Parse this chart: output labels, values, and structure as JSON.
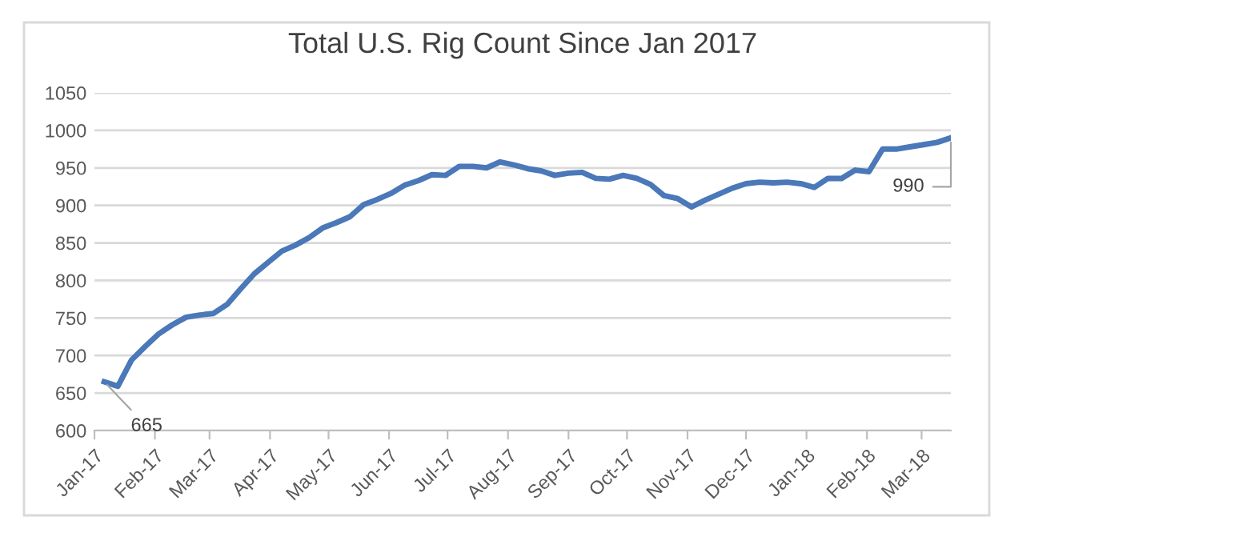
{
  "chart_data": {
    "type": "line",
    "title": "Total U.S. Rig Count Since Jan 2017",
    "x": [
      "2017-01-06",
      "2017-01-13",
      "2017-01-20",
      "2017-01-27",
      "2017-02-03",
      "2017-02-10",
      "2017-02-17",
      "2017-02-24",
      "2017-03-03",
      "2017-03-10",
      "2017-03-17",
      "2017-03-24",
      "2017-03-31",
      "2017-04-07",
      "2017-04-14",
      "2017-04-21",
      "2017-04-28",
      "2017-05-05",
      "2017-05-12",
      "2017-05-19",
      "2017-05-26",
      "2017-06-02",
      "2017-06-09",
      "2017-06-16",
      "2017-06-23",
      "2017-06-30",
      "2017-07-07",
      "2017-07-14",
      "2017-07-21",
      "2017-07-28",
      "2017-08-04",
      "2017-08-11",
      "2017-08-18",
      "2017-08-25",
      "2017-09-01",
      "2017-09-08",
      "2017-09-15",
      "2017-09-22",
      "2017-09-29",
      "2017-10-06",
      "2017-10-13",
      "2017-10-20",
      "2017-10-27",
      "2017-11-03",
      "2017-11-10",
      "2017-11-17",
      "2017-11-24",
      "2017-12-01",
      "2017-12-08",
      "2017-12-15",
      "2017-12-22",
      "2017-12-29",
      "2018-01-05",
      "2018-01-12",
      "2018-01-19",
      "2018-01-26",
      "2018-02-02",
      "2018-02-09",
      "2018-02-16",
      "2018-02-23",
      "2018-03-02",
      "2018-03-09",
      "2018-03-16"
    ],
    "series": [
      {
        "color": "#4a78b8",
        "values": [
          665,
          659,
          694,
          712,
          729,
          741,
          751,
          754,
          756,
          768,
          789,
          809,
          824,
          839,
          847,
          857,
          870,
          877,
          885,
          901,
          908,
          916,
          927,
          933,
          941,
          940,
          952,
          952,
          950,
          958,
          954,
          949,
          946,
          940,
          943,
          944,
          936,
          935,
          940,
          936,
          928,
          913,
          909,
          898,
          907,
          915,
          923,
          929,
          931,
          930,
          931,
          929,
          924,
          936,
          936,
          947,
          945,
          975,
          975,
          978,
          981,
          984,
          990
        ]
      }
    ],
    "xlim": [
      "2017-01-01",
      "2018-03-16"
    ],
    "xticks": [
      {
        "value": "2017-01-01",
        "label": "Jan-17"
      },
      {
        "value": "2017-02-01",
        "label": "Feb-17"
      },
      {
        "value": "2017-03-01",
        "label": "Mar-17"
      },
      {
        "value": "2017-04-01",
        "label": "Apr-17"
      },
      {
        "value": "2017-05-01",
        "label": "May-17"
      },
      {
        "value": "2017-06-01",
        "label": "Jun-17"
      },
      {
        "value": "2017-07-01",
        "label": "Jul-17"
      },
      {
        "value": "2017-08-01",
        "label": "Aug-17"
      },
      {
        "value": "2017-09-01",
        "label": "Sep-17"
      },
      {
        "value": "2017-10-01",
        "label": "Oct-17"
      },
      {
        "value": "2017-11-01",
        "label": "Nov-17"
      },
      {
        "value": "2017-12-01",
        "label": "Dec-17"
      },
      {
        "value": "2018-01-01",
        "label": "Jan-18"
      },
      {
        "value": "2018-02-01",
        "label": "Feb-18"
      },
      {
        "value": "2018-03-01",
        "label": "Mar-18"
      }
    ],
    "ylim": [
      600,
      1050
    ],
    "yticks": [
      600,
      650,
      700,
      750,
      800,
      850,
      900,
      950,
      1000,
      1050
    ],
    "grid": "y",
    "legend": false,
    "marker": "none",
    "line_style": "solid",
    "annotations": [
      {
        "text": "665",
        "x": "2017-01-06",
        "y": 665
      },
      {
        "text": "990",
        "x": "2018-03-16",
        "y": 990
      }
    ]
  }
}
